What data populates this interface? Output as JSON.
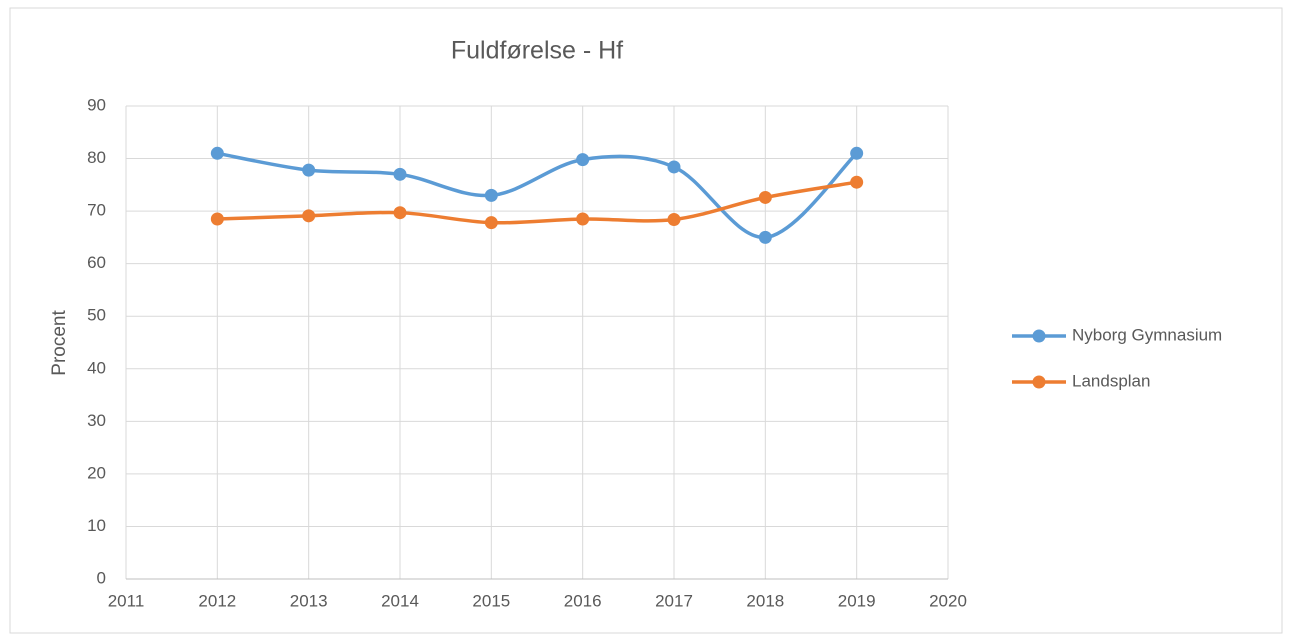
{
  "chart_data": {
    "type": "line",
    "title": "Fuldførelse - Hf",
    "y_label": "Procent",
    "x": [
      2012,
      2013,
      2014,
      2015,
      2016,
      2017,
      2018,
      2019
    ],
    "series": [
      {
        "name": "Nyborg Gymnasium",
        "color": "#5b9bd5",
        "values": [
          81,
          77.8,
          77,
          73,
          79.8,
          78.4,
          65,
          81
        ]
      },
      {
        "name": "Landsplan",
        "color": "#ed7d31",
        "values": [
          68.5,
          69.1,
          69.7,
          67.8,
          68.5,
          68.4,
          72.6,
          75.5
        ]
      }
    ],
    "xlim": [
      2011,
      2020
    ],
    "xticks": [
      2011,
      2012,
      2013,
      2014,
      2015,
      2016,
      2017,
      2018,
      2019,
      2020
    ],
    "ylim": [
      0,
      90
    ],
    "yticks": [
      0,
      10,
      20,
      30,
      40,
      50,
      60,
      70,
      80,
      90
    ],
    "grid": true,
    "smooth": true,
    "legend": "right"
  }
}
